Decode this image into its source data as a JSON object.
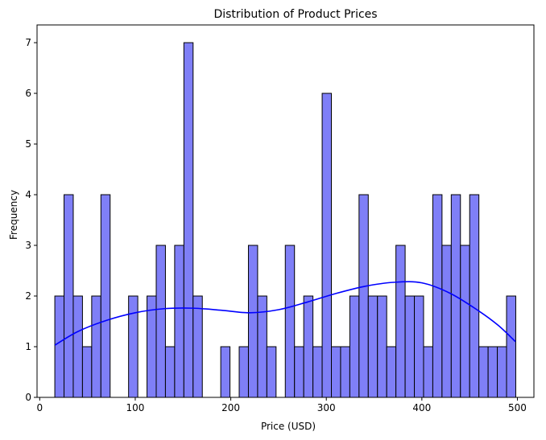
{
  "chart_data": {
    "type": "histogram",
    "title": "Distribution of Product Prices",
    "xlabel": "Price (USD)",
    "ylabel": "Frequency",
    "xlim": [
      -2.8,
      517.3
    ],
    "ylim": [
      0,
      7.35
    ],
    "xticks": [
      0,
      100,
      200,
      300,
      400,
      500
    ],
    "yticks": [
      0,
      1,
      2,
      3,
      4,
      5,
      6,
      7
    ],
    "bin_start": 15.8,
    "bin_width": 9.65,
    "counts": [
      2,
      4,
      2,
      1,
      2,
      4,
      0,
      0,
      2,
      0,
      2,
      3,
      1,
      3,
      7,
      2,
      0,
      0,
      1,
      0,
      1,
      3,
      2,
      1,
      0,
      3,
      1,
      2,
      1,
      6,
      1,
      1,
      2,
      4,
      2,
      2,
      1,
      3,
      2,
      2,
      1,
      4,
      3,
      4,
      3,
      4,
      1,
      1,
      1,
      2
    ],
    "kde": {
      "x": [
        15.8,
        40,
        70,
        100,
        130,
        160,
        190,
        220,
        250,
        280,
        310,
        340,
        370,
        400,
        430,
        460,
        480,
        498
      ],
      "y": [
        1.03,
        1.3,
        1.52,
        1.67,
        1.75,
        1.76,
        1.72,
        1.67,
        1.73,
        1.88,
        2.05,
        2.19,
        2.27,
        2.26,
        2.05,
        1.7,
        1.42,
        1.1
      ]
    },
    "bar_color": "#7f7ff7",
    "bar_edge_color": "#000000",
    "line_color": "#0000ff",
    "grid": false,
    "legend": "none"
  }
}
